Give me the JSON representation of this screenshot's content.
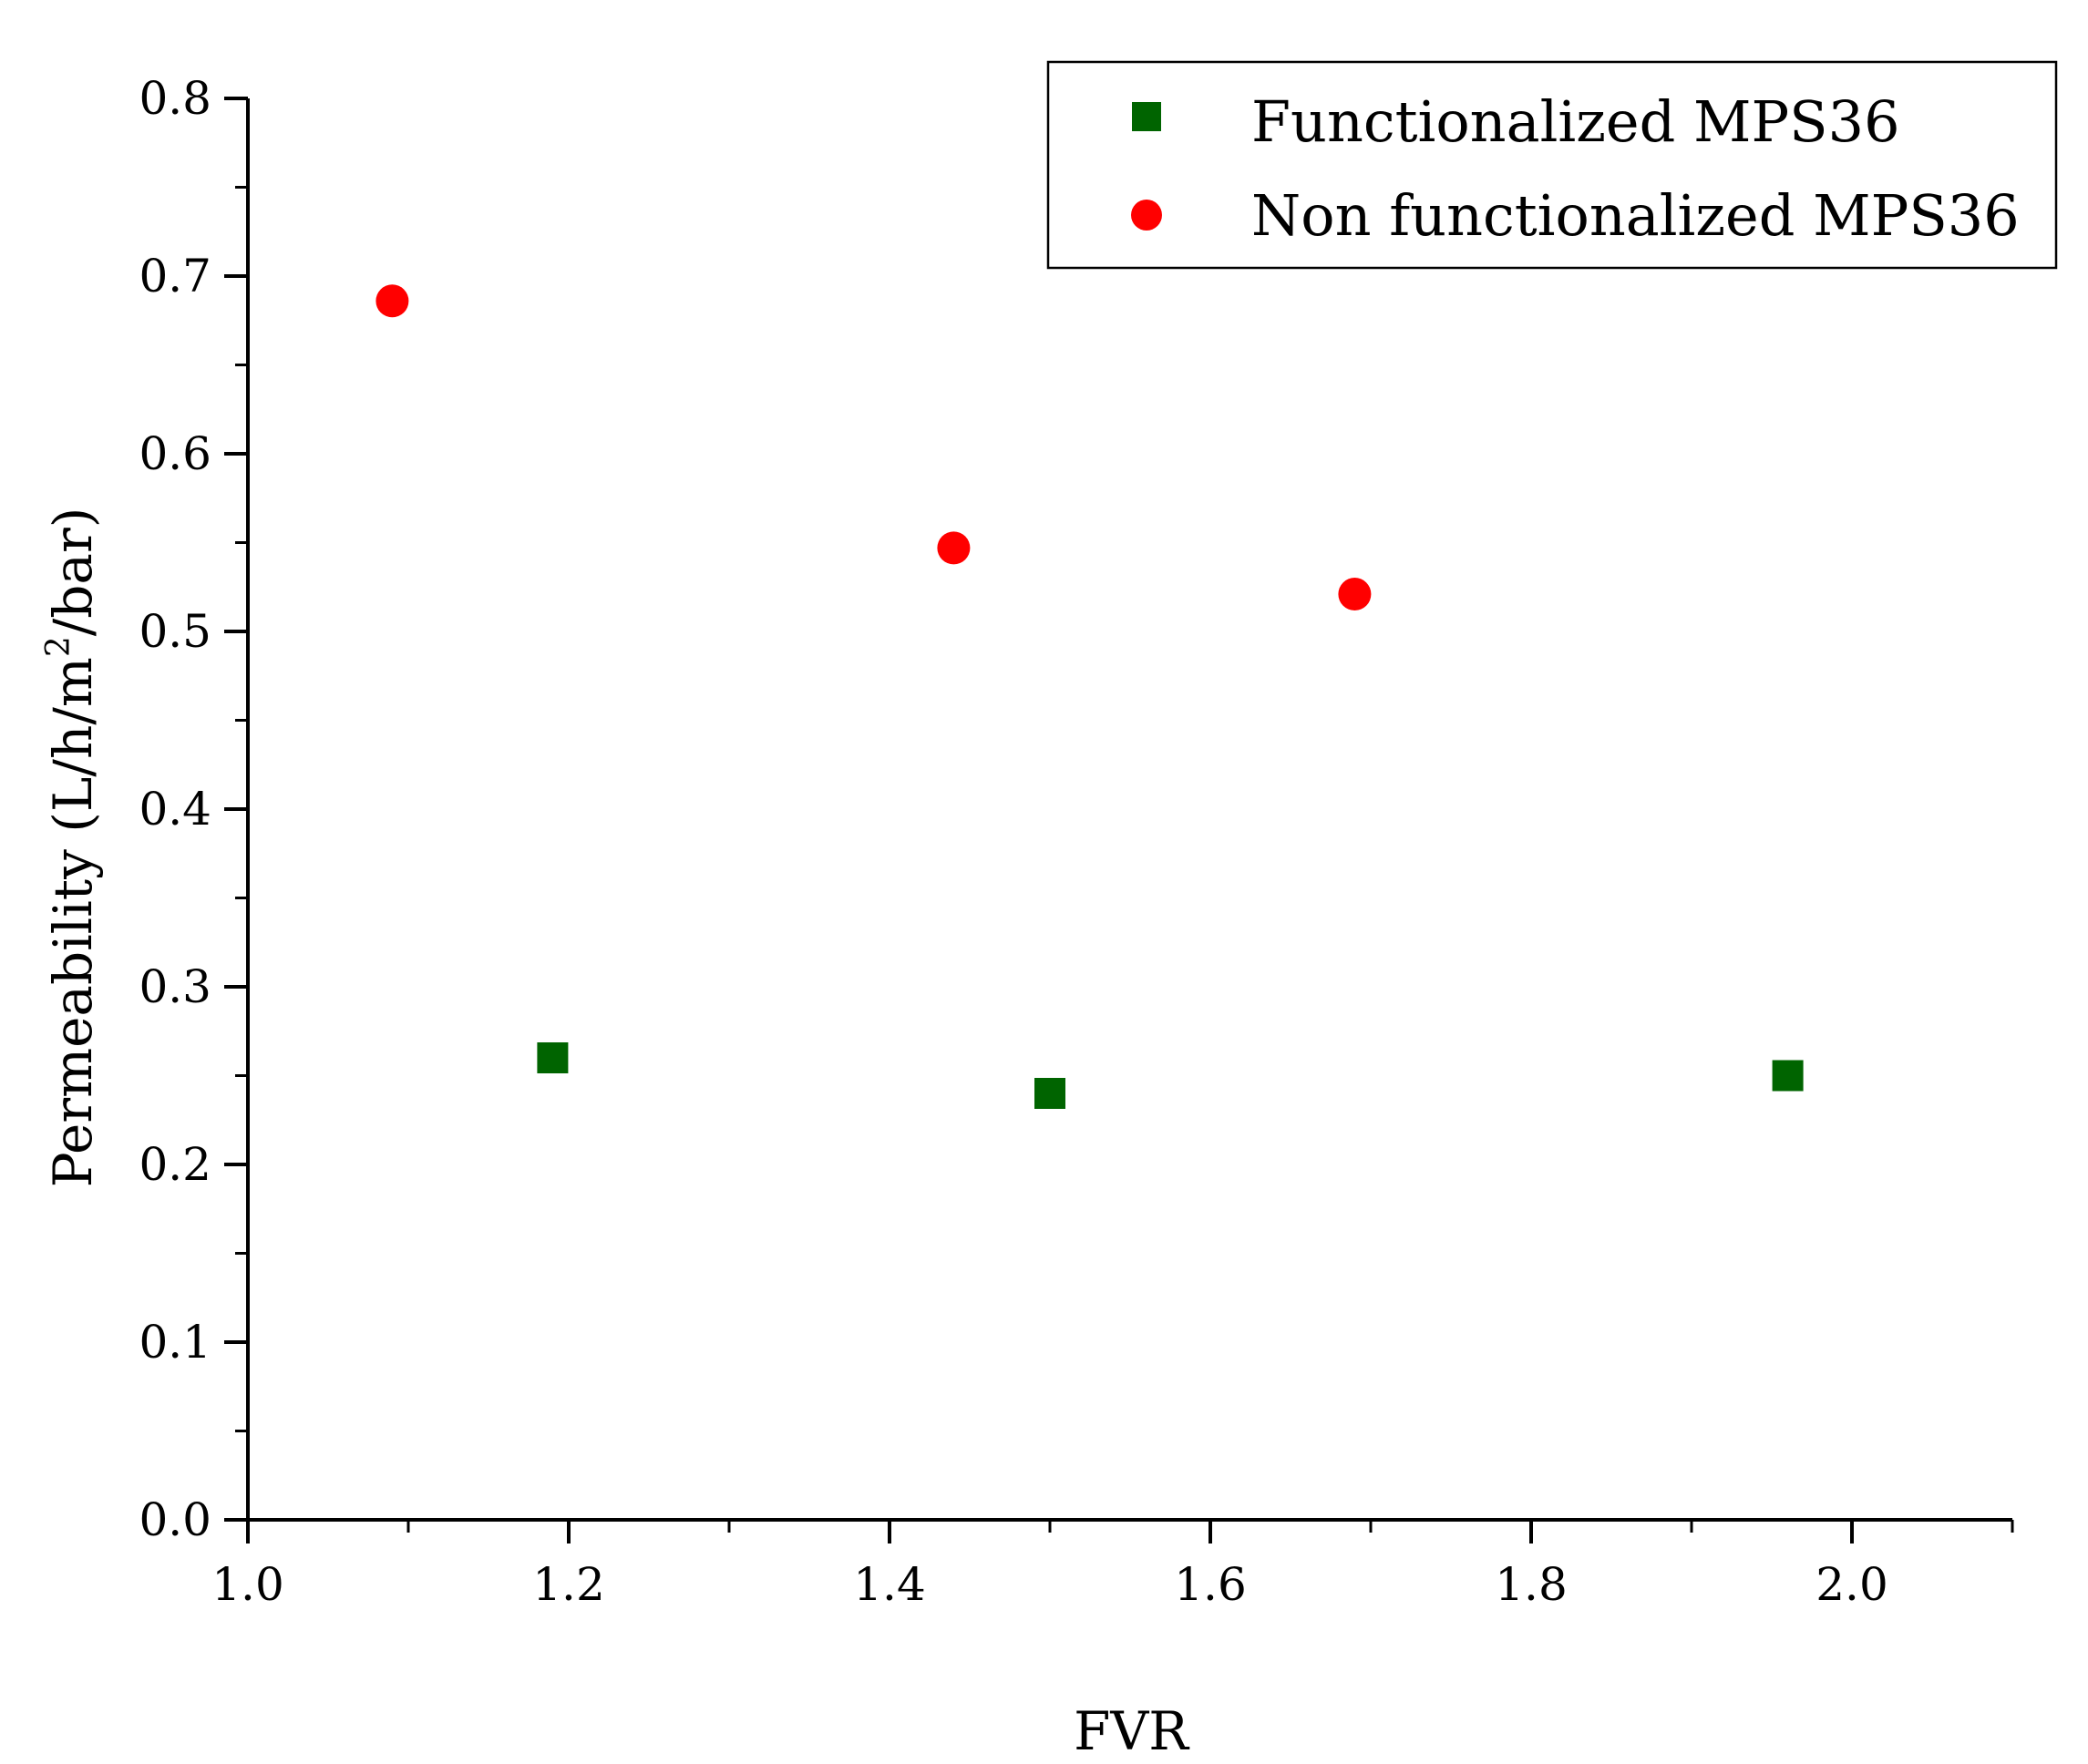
{
  "chart_data": {
    "type": "scatter",
    "title": "",
    "xlabel": "FVR",
    "ylabel": {
      "prefix": "Permeability (L/h/m",
      "superscript": "2",
      "suffix": "/bar)"
    },
    "xlim": [
      1.0,
      2.1
    ],
    "ylim": [
      0.0,
      0.8
    ],
    "x_ticks": [
      "1.0",
      "1.2",
      "1.4",
      "1.6",
      "1.8",
      "2.0"
    ],
    "y_ticks": [
      "0.0",
      "0.1",
      "0.2",
      "0.3",
      "0.4",
      "0.5",
      "0.6",
      "0.7",
      "0.8"
    ],
    "grid": false,
    "legend_position": "top-right",
    "series": [
      {
        "name": "Functionalized MPS36",
        "marker": "square",
        "color": "#006400",
        "points": [
          {
            "x": 1.19,
            "y": 0.26
          },
          {
            "x": 1.5,
            "y": 0.24
          },
          {
            "x": 1.96,
            "y": 0.25
          }
        ]
      },
      {
        "name": "Non functionalized MPS36",
        "marker": "circle",
        "color": "#ff0000",
        "points": [
          {
            "x": 1.09,
            "y": 0.686
          },
          {
            "x": 1.44,
            "y": 0.547
          },
          {
            "x": 1.69,
            "y": 0.521
          }
        ]
      }
    ]
  }
}
